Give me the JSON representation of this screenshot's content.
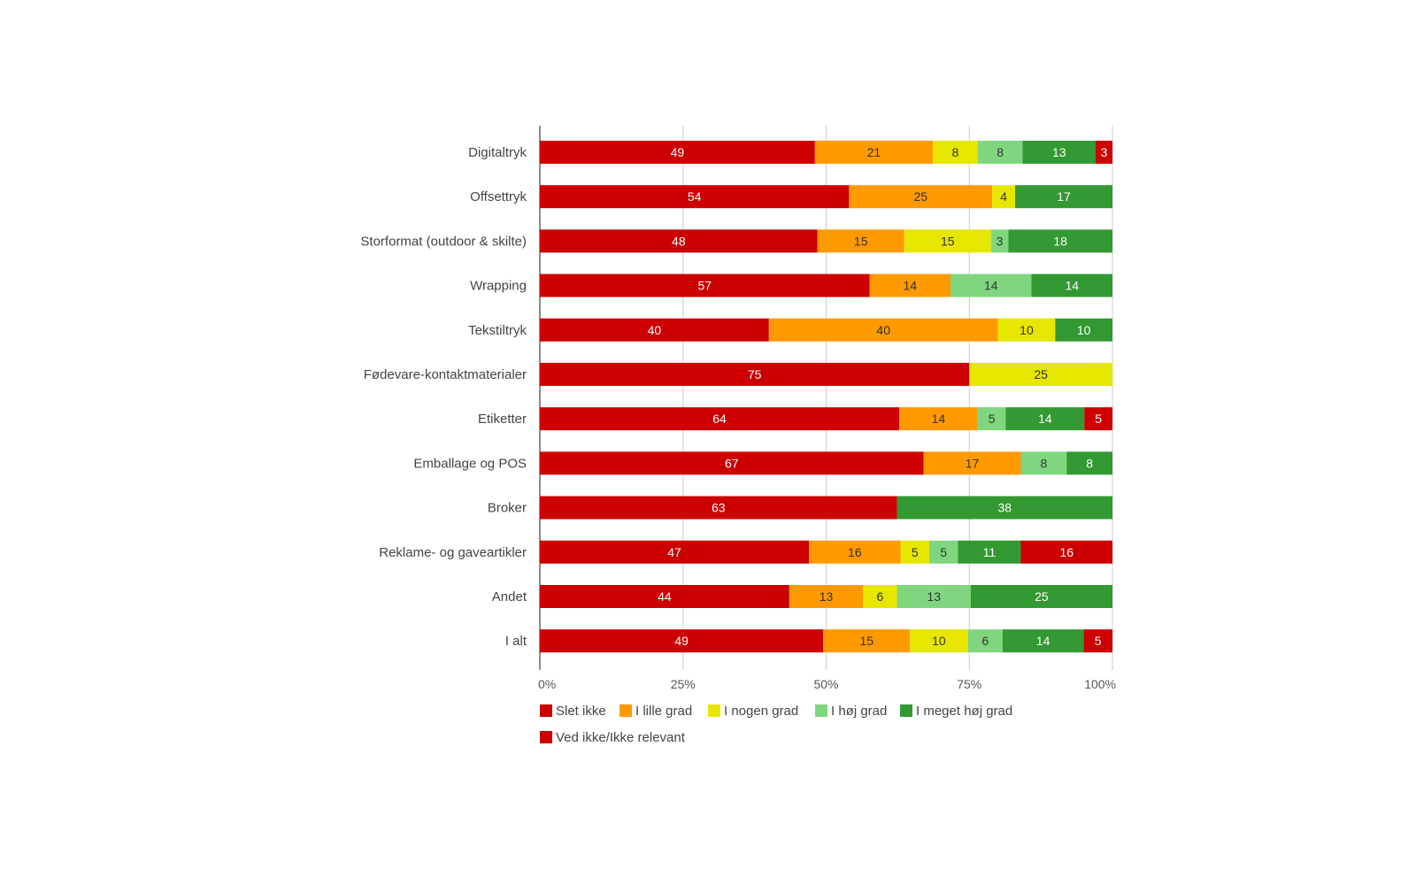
{
  "chart_data": {
    "type": "bar",
    "orientation": "horizontal",
    "stacked": true,
    "categories": [
      "Digitaltryk",
      "Offsettryk",
      "Storformat (outdoor & skilte)",
      "Wrapping",
      "Tekstiltryk",
      "Fødevare-kontaktmaterialer",
      "Etiketter",
      "Emballage og POS",
      "Broker",
      "Reklame- og gaveartikler",
      "Andet",
      "I alt"
    ],
    "series": [
      {
        "name": "Slet ikke",
        "color": "#cc0000",
        "label_color": "#ffffff",
        "values": [
          49,
          54,
          48,
          57,
          40,
          75,
          64,
          67,
          63,
          47,
          44,
          49
        ]
      },
      {
        "name": "I lille grad",
        "color": "#ff9900",
        "label_color": "#333333",
        "values": [
          21,
          25,
          15,
          14,
          40,
          0,
          14,
          17,
          0,
          16,
          13,
          15
        ]
      },
      {
        "name": "I nogen grad",
        "color": "#e6e600",
        "label_color": "#333333",
        "values": [
          8,
          4,
          15,
          0,
          10,
          25,
          0,
          0,
          0,
          5,
          6,
          10
        ]
      },
      {
        "name": "I høj grad",
        "color": "#7fd67f",
        "label_color": "#333333",
        "values": [
          8,
          0,
          3,
          14,
          0,
          0,
          5,
          8,
          0,
          5,
          13,
          6
        ]
      },
      {
        "name": "I meget høj grad",
        "color": "#339933",
        "label_color": "#ffffff",
        "values": [
          13,
          17,
          18,
          14,
          10,
          0,
          14,
          8,
          38,
          11,
          25,
          14
        ]
      },
      {
        "name": "Ved ikke/Ikke relevant",
        "color": "#cc0000",
        "label_color": "#ffffff",
        "values": [
          3,
          0,
          0,
          0,
          0,
          0,
          5,
          0,
          0,
          16,
          0,
          5
        ]
      }
    ],
    "x_ticks": [
      "0%",
      "25%",
      "50%",
      "75%",
      "100%"
    ],
    "xlim": [
      0,
      100
    ],
    "grid": true,
    "legend_position": "bottom",
    "title": "",
    "xlabel": "",
    "ylabel": ""
  }
}
